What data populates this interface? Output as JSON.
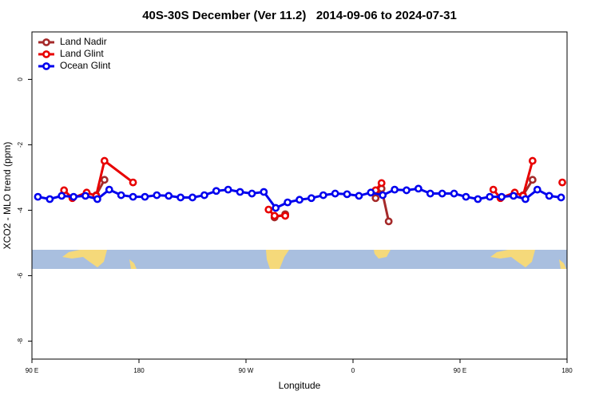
{
  "chart_data": {
    "type": "line",
    "title": "40S-30S December (Ver 11.2)   2014-09-06 to 2024-07-31",
    "xlabel": "Longitude",
    "ylabel": "XCO2 - MLO trend (ppm)",
    "xlim": [
      90,
      540
    ],
    "ylim": [
      -8.55,
      1.45
    ],
    "xticks": [
      {
        "value": 90,
        "label": "90 E"
      },
      180,
      {
        "value": 270,
        "label": "90 W"
      },
      {
        "value": 360,
        "label": "0"
      },
      {
        "value": 450,
        "label": "90 E"
      },
      {
        "value": 540,
        "label": "180"
      }
    ],
    "yticks": [
      0,
      -2,
      -4,
      -6,
      -8
    ],
    "legend": "top-left",
    "series": [
      {
        "name": "Land Nadir",
        "color": "#a52a2a",
        "x": [
          144,
          151,
          null,
          294,
          303,
          null,
          379,
          384,
          390,
          null,
          503,
          511
        ],
        "values": [
          -3.54,
          -3.07,
          null,
          -4.22,
          -4.12,
          null,
          -3.63,
          -3.34,
          -4.34,
          null,
          -3.54,
          -3.07
        ]
      },
      {
        "name": "Land Glint",
        "color": "#e80000",
        "x": [
          117,
          124,
          136,
          144,
          151,
          175,
          null,
          289,
          294,
          303,
          null,
          379,
          384,
          null,
          478,
          484,
          496,
          503,
          511,
          null,
          536
        ],
        "values": [
          -3.39,
          -3.63,
          -3.46,
          -3.56,
          -2.49,
          -3.15,
          null,
          -3.98,
          -4.17,
          -4.17,
          null,
          -3.39,
          -3.17,
          null,
          -3.37,
          -3.63,
          -3.46,
          -3.56,
          -2.49,
          null,
          -3.15
        ]
      },
      {
        "name": "Ocean Glint",
        "color": "#0000ee",
        "x": [
          95,
          105,
          115,
          125,
          135,
          145,
          155,
          165,
          175,
          185,
          195,
          205,
          215,
          225,
          235,
          245,
          255,
          265,
          275,
          285,
          295,
          305,
          315,
          325,
          335,
          345,
          355,
          365,
          375,
          385,
          395,
          405,
          415,
          425,
          435,
          445,
          455,
          465,
          475,
          485,
          495,
          505,
          515,
          525,
          535
        ],
        "values": [
          -3.59,
          -3.66,
          -3.56,
          -3.59,
          -3.56,
          -3.66,
          -3.37,
          -3.54,
          -3.59,
          -3.59,
          -3.54,
          -3.56,
          -3.61,
          -3.61,
          -3.54,
          -3.41,
          -3.37,
          -3.44,
          -3.49,
          -3.44,
          -3.93,
          -3.76,
          -3.68,
          -3.63,
          -3.54,
          -3.49,
          -3.51,
          -3.56,
          -3.46,
          -3.54,
          -3.37,
          -3.39,
          -3.34,
          -3.49,
          -3.49,
          -3.49,
          -3.59,
          -3.66,
          -3.59,
          -3.59,
          -3.56,
          -3.66,
          -3.37,
          -3.56,
          -3.61
        ]
      }
    ]
  }
}
